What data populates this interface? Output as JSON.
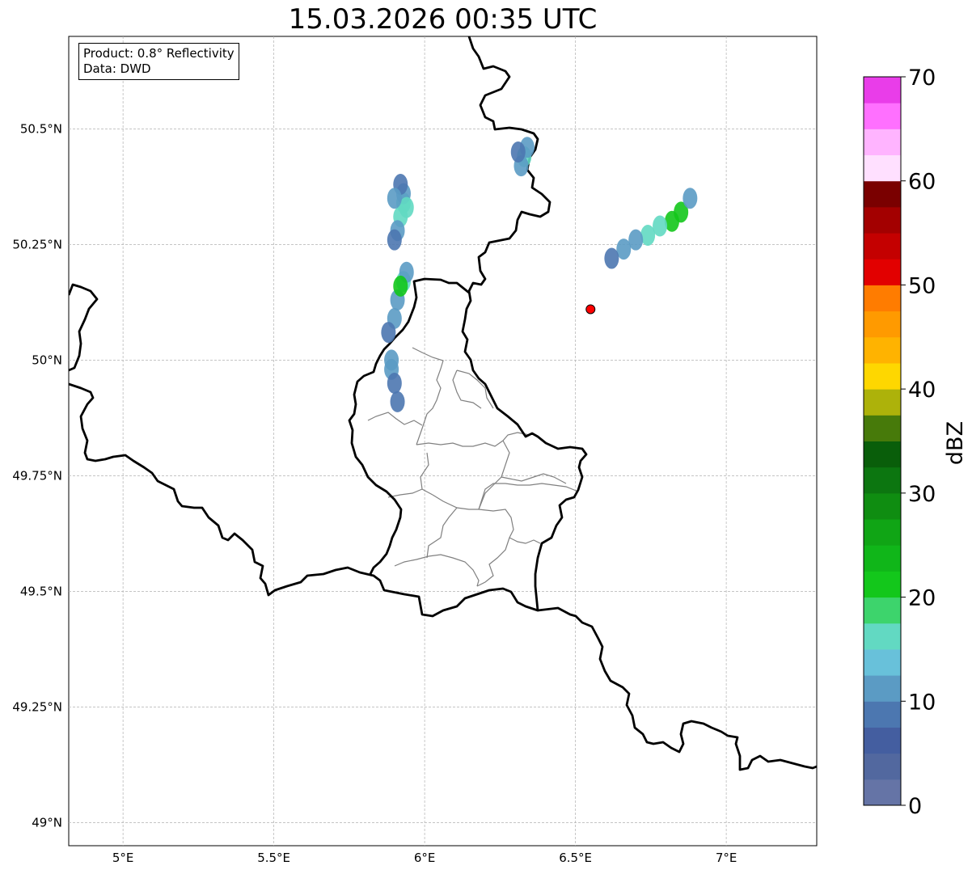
{
  "title": "15.03.2026 00:35 UTC",
  "info": {
    "product": "Product: 0.8° Reflectivity",
    "data": "Data: DWD"
  },
  "map": {
    "lon_ticks": [
      {
        "value": 5.0,
        "label": "5°E"
      },
      {
        "value": 5.5,
        "label": "5.5°E"
      },
      {
        "value": 6.0,
        "label": "6°E"
      },
      {
        "value": 6.5,
        "label": "6.5°E"
      },
      {
        "value": 7.0,
        "label": "7°E"
      }
    ],
    "lat_ticks": [
      {
        "value": 50.5,
        "label": "50.5°N"
      },
      {
        "value": 50.25,
        "label": "50.25°N"
      },
      {
        "value": 50.0,
        "label": "50°N"
      },
      {
        "value": 49.75,
        "label": "49.75°N"
      },
      {
        "value": 49.5,
        "label": "49.5°N"
      },
      {
        "value": 49.25,
        "label": "49.25°N"
      },
      {
        "value": 49.0,
        "label": "49°N"
      }
    ],
    "extent": {
      "lon_min": 4.82,
      "lon_max": 7.3,
      "lat_min": 48.95,
      "lat_max": 50.7
    },
    "radar_site": {
      "lon": 6.55,
      "lat": 50.11,
      "color": "#ff0000"
    },
    "grid": true
  },
  "colorbar": {
    "label": "dBZ",
    "min": 0,
    "max": 70,
    "tick_values": [
      0,
      10,
      20,
      30,
      40,
      50,
      60,
      70
    ],
    "tick_labels": [
      "0",
      "10",
      "20",
      "30",
      "40",
      "50",
      "60",
      "70"
    ],
    "colors": [
      "#6574a6",
      "#52689f",
      "#445ea0",
      "#4c77b0",
      "#5b9bc4",
      "#68c1da",
      "#62d9c2",
      "#3dd46c",
      "#13c71b",
      "#10b619",
      "#10a515",
      "#0f8d11",
      "#0c7610",
      "#095e0a",
      "#477a0a",
      "#adb20a",
      "#fed700",
      "#ffb300",
      "#ff9a00",
      "#ff7c00",
      "#e20000",
      "#c40000",
      "#a30000",
      "#7a0000",
      "#ffe0ff",
      "#ffb4ff",
      "#ff70ff",
      "#e93de9"
    ]
  },
  "echoes": [
    {
      "name": "echo-west-north",
      "cells": [
        [
          5.93,
          50.34,
          2
        ],
        [
          5.92,
          50.31,
          2
        ],
        [
          5.93,
          50.36,
          1
        ],
        [
          5.91,
          50.28,
          1
        ],
        [
          5.9,
          50.26,
          0
        ],
        [
          5.94,
          50.33,
          2
        ],
        [
          5.92,
          50.38,
          0
        ],
        [
          5.9,
          50.35,
          1
        ]
      ]
    },
    {
      "name": "echo-west-mid",
      "cells": [
        [
          5.93,
          50.17,
          2
        ],
        [
          5.91,
          50.13,
          1
        ],
        [
          5.9,
          50.09,
          1
        ],
        [
          5.94,
          50.19,
          1
        ],
        [
          5.92,
          50.16,
          3
        ],
        [
          5.88,
          50.06,
          0
        ]
      ]
    },
    {
      "name": "echo-west-south",
      "cells": [
        [
          5.89,
          49.98,
          1
        ],
        [
          5.9,
          49.95,
          0
        ],
        [
          5.89,
          50.0,
          1
        ],
        [
          5.91,
          49.91,
          0
        ]
      ]
    },
    {
      "name": "echo-north-central",
      "cells": [
        [
          6.33,
          50.44,
          2
        ],
        [
          6.32,
          50.42,
          1
        ],
        [
          6.34,
          50.46,
          1
        ],
        [
          6.31,
          50.45,
          0
        ]
      ]
    },
    {
      "name": "echo-northeast-band",
      "cells": [
        [
          6.85,
          50.32,
          3
        ],
        [
          6.82,
          50.3,
          3
        ],
        [
          6.78,
          50.29,
          2
        ],
        [
          6.74,
          50.27,
          2
        ],
        [
          6.7,
          50.26,
          1
        ],
        [
          6.66,
          50.24,
          1
        ],
        [
          6.62,
          50.22,
          0
        ],
        [
          6.88,
          50.35,
          1
        ]
      ]
    }
  ]
}
